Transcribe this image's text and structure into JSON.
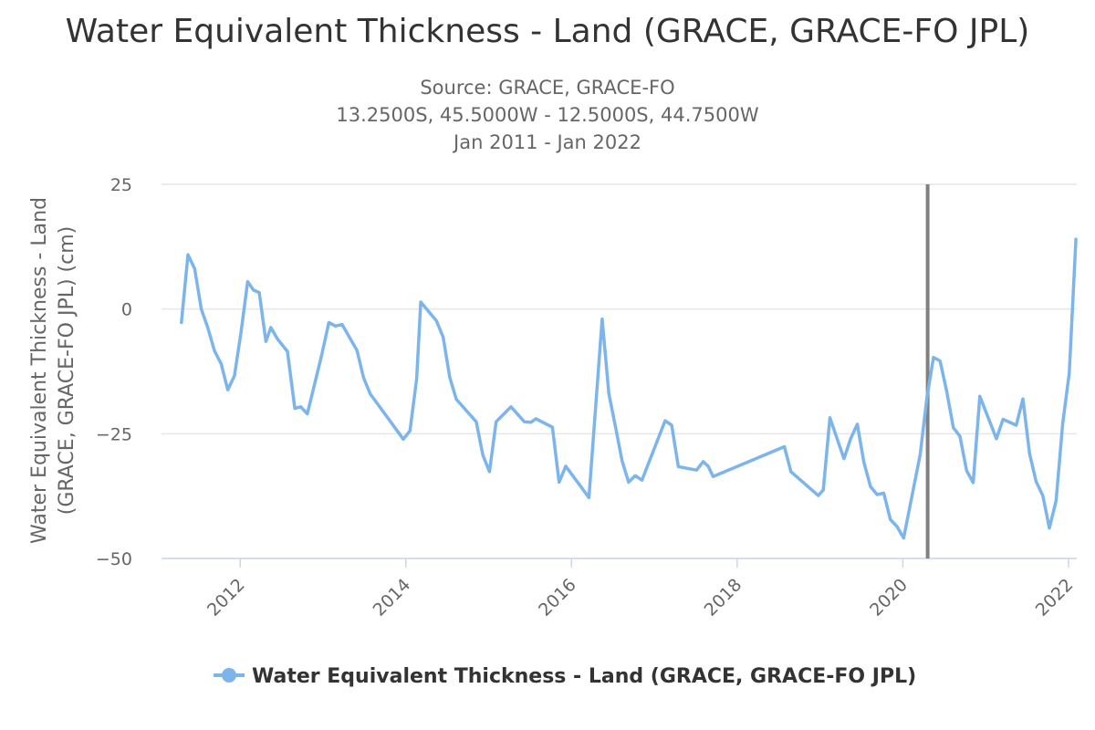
{
  "chart_data": {
    "type": "line",
    "title": "Water Equivalent Thickness - Land (GRACE, GRACE-FO JPL)",
    "subtitle": [
      "Source: GRACE, GRACE-FO",
      "13.2500S, 45.5000W - 12.5000S, 44.7500W",
      "Jan 2011 - Jan 2022"
    ],
    "ylabel": [
      "Water Equivalent Thickness - Land",
      "(GRACE, GRACE-FO JPL) (cm)"
    ],
    "xlabel": "",
    "ylim": [
      -50,
      25
    ],
    "xlim": [
      2011.05,
      2022.1
    ],
    "yticks": [
      25,
      0,
      -25,
      -50
    ],
    "ytick_labels": [
      "25",
      "0",
      "−25",
      "−50"
    ],
    "xticks": [
      2012,
      2014,
      2016,
      2018,
      2020,
      2022
    ],
    "grid": true,
    "legend": "bottom-center",
    "marker_line_x": 2020.3,
    "series": [
      {
        "name": "Water Equivalent Thickness - Land (GRACE, GRACE-FO JPL)",
        "color": "#7cb5ec",
        "points": [
          [
            2011.29,
            -2.7
          ],
          [
            2011.37,
            10.9
          ],
          [
            2011.45,
            8.1
          ],
          [
            2011.53,
            0.0
          ],
          [
            2011.61,
            -3.8
          ],
          [
            2011.69,
            -8.4
          ],
          [
            2011.77,
            -11.0
          ],
          [
            2011.85,
            -16.2
          ],
          [
            2011.93,
            -13.4
          ],
          [
            2012.01,
            -4.7
          ],
          [
            2012.09,
            5.5
          ],
          [
            2012.16,
            3.8
          ],
          [
            2012.23,
            3.3
          ],
          [
            2012.31,
            -6.5
          ],
          [
            2012.37,
            -3.7
          ],
          [
            2012.45,
            -6.0
          ],
          [
            2012.57,
            -8.5
          ],
          [
            2012.66,
            -19.9
          ],
          [
            2012.73,
            -19.6
          ],
          [
            2012.81,
            -21.0
          ],
          [
            2012.98,
            -9.5
          ],
          [
            2013.07,
            -2.7
          ],
          [
            2013.15,
            -3.4
          ],
          [
            2013.23,
            -3.1
          ],
          [
            2013.41,
            -8.3
          ],
          [
            2013.49,
            -13.8
          ],
          [
            2013.57,
            -17.0
          ],
          [
            2013.97,
            -26.1
          ],
          [
            2014.05,
            -24.4
          ],
          [
            2014.13,
            -14.0
          ],
          [
            2014.18,
            1.4
          ],
          [
            2014.37,
            -2.4
          ],
          [
            2014.45,
            -5.6
          ],
          [
            2014.53,
            -13.7
          ],
          [
            2014.61,
            -18.1
          ],
          [
            2014.85,
            -22.6
          ],
          [
            2014.93,
            -29.3
          ],
          [
            2015.01,
            -32.6
          ],
          [
            2015.09,
            -22.6
          ],
          [
            2015.27,
            -19.6
          ],
          [
            2015.43,
            -22.6
          ],
          [
            2015.51,
            -22.7
          ],
          [
            2015.57,
            -22.0
          ],
          [
            2015.77,
            -23.7
          ],
          [
            2015.85,
            -34.7
          ],
          [
            2015.93,
            -31.5
          ],
          [
            2016.21,
            -37.8
          ],
          [
            2016.37,
            -2.0
          ],
          [
            2016.45,
            -16.9
          ],
          [
            2016.53,
            -23.5
          ],
          [
            2016.61,
            -30.4
          ],
          [
            2016.69,
            -34.7
          ],
          [
            2016.77,
            -33.4
          ],
          [
            2016.85,
            -34.3
          ],
          [
            2017.13,
            -22.4
          ],
          [
            2017.21,
            -23.3
          ],
          [
            2017.29,
            -31.6
          ],
          [
            2017.51,
            -32.3
          ],
          [
            2017.59,
            -30.6
          ],
          [
            2017.65,
            -31.5
          ],
          [
            2017.71,
            -33.6
          ],
          [
            2018.57,
            -27.6
          ],
          [
            2018.65,
            -32.6
          ],
          [
            2018.98,
            -37.4
          ],
          [
            2019.04,
            -36.3
          ],
          [
            2019.12,
            -21.8
          ],
          [
            2019.29,
            -30.0
          ],
          [
            2019.37,
            -26.0
          ],
          [
            2019.45,
            -23.1
          ],
          [
            2019.53,
            -30.7
          ],
          [
            2019.61,
            -35.6
          ],
          [
            2019.69,
            -37.2
          ],
          [
            2019.77,
            -36.9
          ],
          [
            2019.85,
            -42.2
          ],
          [
            2019.93,
            -43.6
          ],
          [
            2020.01,
            -45.9
          ],
          [
            2020.21,
            -29.2
          ],
          [
            2020.29,
            -17.9
          ],
          [
            2020.37,
            -9.7
          ],
          [
            2020.45,
            -10.4
          ],
          [
            2020.53,
            -16.5
          ],
          [
            2020.61,
            -23.8
          ],
          [
            2020.69,
            -25.5
          ],
          [
            2020.77,
            -32.4
          ],
          [
            2020.85,
            -34.8
          ],
          [
            2020.93,
            -17.5
          ],
          [
            2021.13,
            -26.0
          ],
          [
            2021.21,
            -22.1
          ],
          [
            2021.37,
            -23.3
          ],
          [
            2021.45,
            -18.0
          ],
          [
            2021.53,
            -29.0
          ],
          [
            2021.61,
            -34.6
          ],
          [
            2021.69,
            -37.4
          ],
          [
            2021.77,
            -43.9
          ],
          [
            2021.85,
            -38.5
          ],
          [
            2021.93,
            -23.0
          ],
          [
            2022.01,
            -12.8
          ],
          [
            2022.09,
            14.0
          ]
        ]
      }
    ]
  }
}
